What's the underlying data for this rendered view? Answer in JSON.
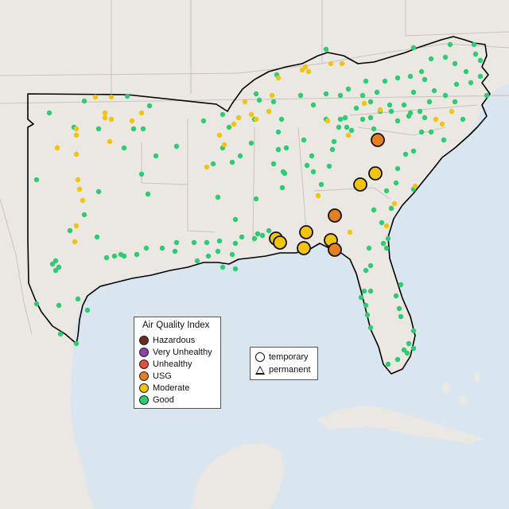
{
  "colors": {
    "water": "#d9e6ef",
    "land": "#ebe7e3",
    "state_border": "#c9c3bd",
    "region_outline": "#000000",
    "good": "#2ecc71",
    "moderate": "#f1c40f",
    "usg": "#e67e22",
    "unhealthy": "#e74c3c",
    "very_unhealthy": "#8e44ad",
    "hazardous": "#6d2a22"
  },
  "aqi_legend": {
    "title": "Air Quality Index",
    "items": [
      {
        "label": "Hazardous",
        "color": "#6d2a22"
      },
      {
        "label": "Very Unhealthy",
        "color": "#8e44ad"
      },
      {
        "label": "Unhealthy",
        "color": "#e74c3c"
      },
      {
        "label": "USG",
        "color": "#e67e22"
      },
      {
        "label": "Moderate",
        "color": "#f1c40f"
      },
      {
        "label": "Good",
        "color": "#2ecc71"
      }
    ]
  },
  "monitor_type_legend": {
    "items": [
      {
        "label": "temporary",
        "shape": "circle"
      },
      {
        "label": "permanent",
        "shape": "triangle"
      }
    ]
  }
}
